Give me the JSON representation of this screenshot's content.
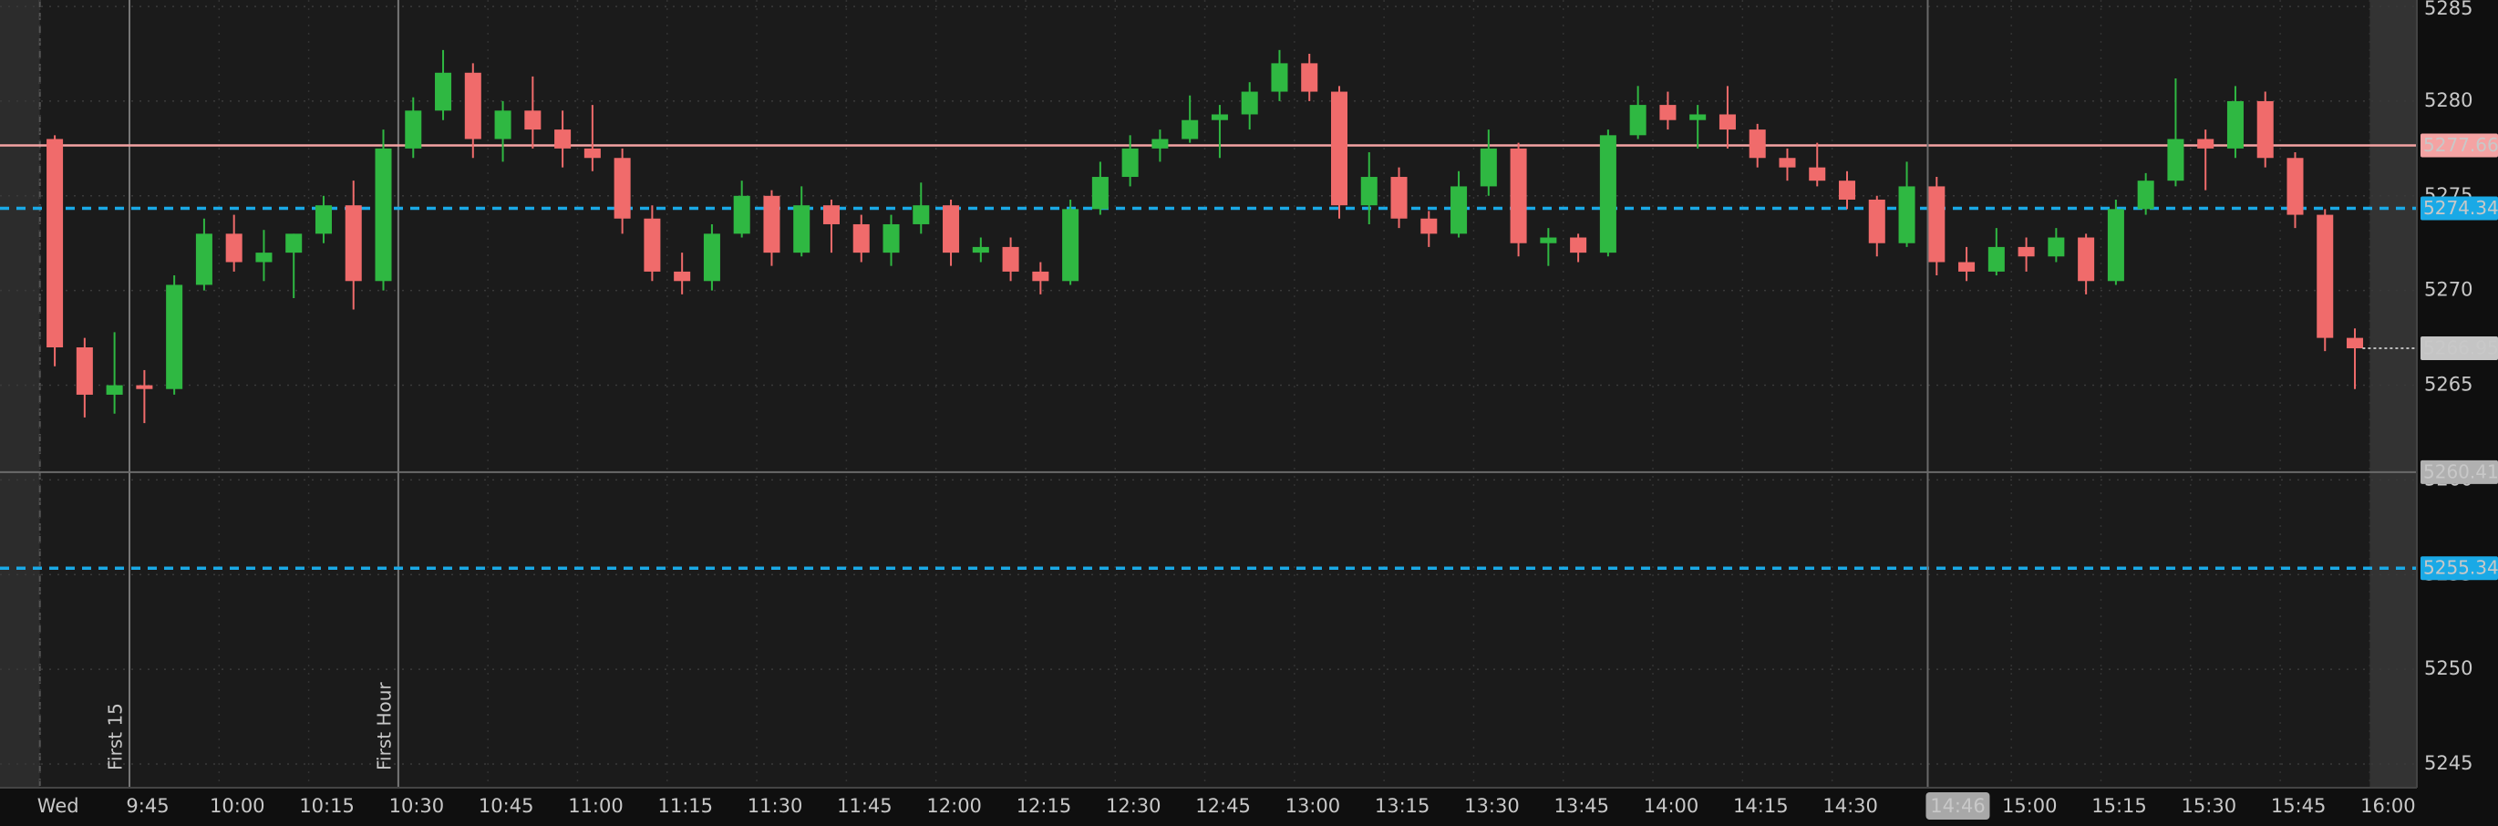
{
  "chart_data": {
    "type": "candlestick",
    "x": [
      570,
      575,
      580,
      585,
      590,
      595,
      600,
      605,
      610,
      615,
      620,
      625,
      630,
      635,
      640,
      645,
      650,
      655,
      660,
      665,
      670,
      675,
      680,
      685,
      690,
      695,
      700,
      705,
      710,
      715,
      720,
      725,
      730,
      735,
      740,
      745,
      750,
      755,
      760,
      765,
      770,
      775,
      780,
      785,
      790,
      795,
      800,
      805,
      810,
      815,
      820,
      825,
      830,
      835,
      840,
      845,
      850,
      855,
      860,
      865,
      870,
      875,
      880,
      885,
      890,
      895,
      900,
      905,
      910,
      915,
      920,
      925,
      930,
      935,
      940,
      945,
      950,
      955
    ],
    "open": [
      5278,
      5267,
      5264.5,
      5265,
      5264.8,
      5270.3,
      5273,
      5271.5,
      5272,
      5273,
      5274.5,
      5270.5,
      5277.5,
      5279.5,
      5281.5,
      5278,
      5279.5,
      5278.5,
      5277.5,
      5277,
      5273.8,
      5271,
      5270.5,
      5273,
      5275,
      5272,
      5274.5,
      5273.5,
      5272,
      5273.5,
      5274.5,
      5272,
      5272.3,
      5271,
      5270.5,
      5274.3,
      5276,
      5277.5,
      5278,
      5279,
      5279.3,
      5280.5,
      5282,
      5280.5,
      5274.5,
      5276,
      5273.8,
      5273,
      5275.5,
      5277.5,
      5272.5,
      5272.8,
      5272,
      5278.2,
      5279.8,
      5279,
      5279.3,
      5278.5,
      5277,
      5276.5,
      5275.8,
      5274.8,
      5272.5,
      5275.5,
      5271.5,
      5271,
      5272.3,
      5271.8,
      5272.8,
      5270.5,
      5274.3,
      5275.8,
      5278,
      5277.5,
      5280,
      5277,
      5274,
      5267.5
    ],
    "high": [
      5278.2,
      5267.5,
      5267.8,
      5265.8,
      5270.8,
      5273.8,
      5274,
      5273.2,
      5273,
      5275,
      5275.8,
      5278.5,
      5280.2,
      5282.7,
      5282,
      5280,
      5281.3,
      5279.5,
      5279.8,
      5277.5,
      5274.5,
      5272,
      5273.5,
      5275.8,
      5275.3,
      5275.5,
      5274.8,
      5274,
      5274,
      5275.7,
      5274.8,
      5272.8,
      5272.8,
      5271.5,
      5274.8,
      5276.8,
      5278.2,
      5278.5,
      5280.3,
      5279.8,
      5281,
      5282.7,
      5282.5,
      5280.8,
      5277.3,
      5276.5,
      5274.2,
      5276.3,
      5278.5,
      5277.8,
      5273.3,
      5273,
      5278.5,
      5280.8,
      5280.5,
      5279.8,
      5280.8,
      5278.8,
      5277.5,
      5277.8,
      5276.3,
      5275,
      5276.8,
      5276,
      5272.3,
      5273.3,
      5272.8,
      5273.3,
      5273,
      5274.8,
      5276.2,
      5281.2,
      5278.5,
      5280.8,
      5280.5,
      5277.3,
      5274.3,
      5268
    ],
    "low": [
      5266,
      5263.3,
      5263.5,
      5263,
      5264.5,
      5270,
      5271,
      5270.5,
      5269.6,
      5272.5,
      5269,
      5270,
      5277,
      5279,
      5277,
      5276.8,
      5277.5,
      5276.5,
      5276.3,
      5273,
      5270.5,
      5269.8,
      5270,
      5272.8,
      5271.3,
      5271.8,
      5272,
      5271.5,
      5271.3,
      5273,
      5271.3,
      5271.5,
      5270.5,
      5269.8,
      5270.3,
      5274,
      5275.5,
      5276.8,
      5277.8,
      5277,
      5278.5,
      5280,
      5280,
      5273.8,
      5273.5,
      5273.3,
      5272.3,
      5272.8,
      5275,
      5271.8,
      5271.3,
      5271.5,
      5271.8,
      5278,
      5278.5,
      5277.5,
      5277.5,
      5276.5,
      5275.8,
      5275.5,
      5274.3,
      5271.8,
      5272.3,
      5270.8,
      5270.5,
      5270.8,
      5271,
      5271.5,
      5269.8,
      5270.3,
      5274,
      5275.5,
      5275.3,
      5277,
      5276.5,
      5273.3,
      5266.8,
      5264.8
    ],
    "close": [
      5267,
      5264.5,
      5265,
      5264.8,
      5270.3,
      5273,
      5271.5,
      5272,
      5273,
      5274.5,
      5270.5,
      5277.5,
      5279.5,
      5281.5,
      5278,
      5279.5,
      5278.5,
      5277.5,
      5277,
      5273.8,
      5271,
      5270.5,
      5273,
      5275,
      5272,
      5274.5,
      5273.5,
      5272,
      5273.5,
      5274.5,
      5272,
      5272.3,
      5271,
      5270.5,
      5274.3,
      5276,
      5277.5,
      5278,
      5279,
      5279.3,
      5280.5,
      5282,
      5280.5,
      5274.5,
      5276,
      5273.8,
      5273,
      5275.5,
      5277.5,
      5272.5,
      5272.8,
      5272,
      5278.2,
      5279.8,
      5279,
      5279.3,
      5278.5,
      5277,
      5276.5,
      5275.8,
      5274.8,
      5272.5,
      5275.5,
      5271.5,
      5271,
      5272.3,
      5271.8,
      5272.8,
      5270.5,
      5274.3,
      5275.8,
      5278,
      5277.5,
      5280,
      5277,
      5274,
      5267.5,
      5266.95
    ],
    "up_color": "#2fb842",
    "down_color": "#f06b6b",
    "xlim": [
      570,
      960
    ],
    "xticks": [
      {
        "value": 570,
        "label": "Wed"
      },
      {
        "value": 585,
        "label": "9:45"
      },
      {
        "value": 600,
        "label": "10:00"
      },
      {
        "value": 615,
        "label": "10:15"
      },
      {
        "value": 630,
        "label": "10:30"
      },
      {
        "value": 645,
        "label": "10:45"
      },
      {
        "value": 660,
        "label": "11:00"
      },
      {
        "value": 675,
        "label": "11:15"
      },
      {
        "value": 690,
        "label": "11:30"
      },
      {
        "value": 705,
        "label": "11:45"
      },
      {
        "value": 720,
        "label": "12:00"
      },
      {
        "value": 735,
        "label": "12:15"
      },
      {
        "value": 750,
        "label": "12:30"
      },
      {
        "value": 765,
        "label": "12:45"
      },
      {
        "value": 780,
        "label": "13:00"
      },
      {
        "value": 795,
        "label": "13:15"
      },
      {
        "value": 810,
        "label": "13:30"
      },
      {
        "value": 825,
        "label": "13:45"
      },
      {
        "value": 840,
        "label": "14:00"
      },
      {
        "value": 855,
        "label": "14:15"
      },
      {
        "value": 870,
        "label": "14:30"
      },
      {
        "value": 900,
        "label": "15:00"
      },
      {
        "value": 915,
        "label": "15:15"
      },
      {
        "value": 930,
        "label": "15:30"
      },
      {
        "value": 945,
        "label": "15:45"
      },
      {
        "value": 960,
        "label": "16:00"
      }
    ],
    "ylim": [
      5243.75,
      5285.34
    ],
    "yticks": [
      5245,
      5250,
      5255,
      5260,
      5265,
      5270,
      5275,
      5280,
      5285
    ],
    "grid": true,
    "levels": [
      {
        "value": 5277.66,
        "color": "#f4a3a3",
        "style": "solid"
      },
      {
        "value": 5274.34,
        "color": "#1aa9e6",
        "style": "dashed"
      },
      {
        "value": 5255.34,
        "color": "#1aa9e6",
        "style": "dashed"
      }
    ],
    "annotations": [
      {
        "x": 585,
        "text": "First 15"
      },
      {
        "x": 630,
        "text": "First Hour"
      }
    ],
    "crosshair": {
      "x": {
        "value": 886,
        "label": "14:46"
      },
      "y": 5260.41
    }
  }
}
